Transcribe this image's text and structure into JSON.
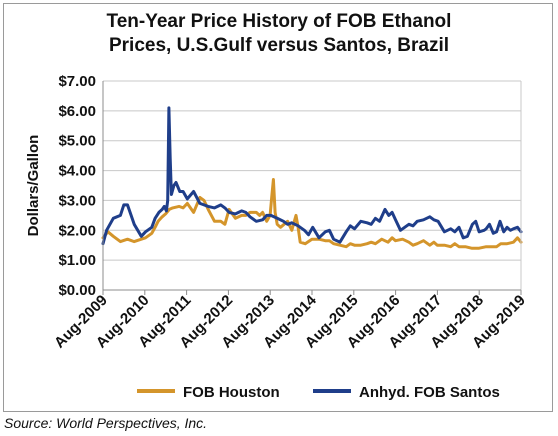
{
  "chart_data": {
    "type": "line",
    "title_line1": "Ten-Year Price History of FOB Ethanol",
    "title_line2": "Prices, U.S.Gulf versus Santos, Brazil",
    "ylabel": "Dollars/Gallon",
    "xlabel": "",
    "ylim": [
      0,
      7
    ],
    "yticks": [
      "$0.00",
      "$1.00",
      "$2.00",
      "$3.00",
      "$4.00",
      "$5.00",
      "$6.00",
      "$7.00"
    ],
    "xlim": [
      2009.583,
      2019.583
    ],
    "xticks": [
      "Aug-2009",
      "Aug-2010",
      "Aug-2011",
      "Aug-2012",
      "Aug-2013",
      "Aug-2014",
      "Aug-2015",
      "Aug-2016",
      "Aug-2017",
      "Aug-2018",
      "Aug-2019"
    ],
    "grid": "horizontal",
    "legend_position": "bottom",
    "series": [
      {
        "name": "FOB Houston",
        "color": "#D4952B",
        "x": [
          2009.583,
          2009.7,
          2009.83,
          2010.0,
          2010.17,
          2010.33,
          2010.5,
          2010.6,
          2010.75,
          2010.83,
          2010.9,
          2011.0,
          2011.08,
          2011.17,
          2011.25,
          2011.4,
          2011.5,
          2011.6,
          2011.75,
          2011.9,
          2012.0,
          2012.1,
          2012.25,
          2012.4,
          2012.5,
          2012.6,
          2012.75,
          2012.9,
          2013.0,
          2013.1,
          2013.25,
          2013.33,
          2013.4,
          2013.5,
          2013.58,
          2013.62,
          2013.66,
          2013.7,
          2013.75,
          2013.83,
          2014.0,
          2014.1,
          2014.2,
          2014.25,
          2014.3,
          2014.42,
          2014.58,
          2014.75,
          2014.9,
          2015.0,
          2015.1,
          2015.25,
          2015.4,
          2015.5,
          2015.6,
          2015.75,
          2015.9,
          2016.0,
          2016.1,
          2016.25,
          2016.4,
          2016.5,
          2016.58,
          2016.75,
          2016.9,
          2017.0,
          2017.1,
          2017.25,
          2017.4,
          2017.5,
          2017.58,
          2017.75,
          2017.9,
          2018.0,
          2018.1,
          2018.25,
          2018.4,
          2018.58,
          2018.75,
          2018.9,
          2019.0,
          2019.1,
          2019.25,
          2019.4,
          2019.5,
          2019.583
        ],
        "values": [
          1.75,
          1.95,
          1.8,
          1.62,
          1.7,
          1.62,
          1.7,
          1.75,
          1.9,
          2.1,
          2.3,
          2.45,
          2.55,
          2.7,
          2.75,
          2.8,
          2.75,
          2.9,
          2.6,
          3.1,
          3.0,
          2.7,
          2.3,
          2.3,
          2.2,
          2.7,
          2.4,
          2.5,
          2.5,
          2.6,
          2.6,
          2.5,
          2.6,
          2.3,
          2.5,
          3.1,
          3.7,
          2.6,
          2.2,
          2.1,
          2.3,
          2.0,
          2.5,
          2.1,
          1.6,
          1.55,
          1.7,
          1.7,
          1.65,
          1.65,
          1.55,
          1.5,
          1.45,
          1.55,
          1.5,
          1.5,
          1.55,
          1.6,
          1.55,
          1.7,
          1.6,
          1.75,
          1.65,
          1.7,
          1.6,
          1.5,
          1.55,
          1.65,
          1.5,
          1.6,
          1.5,
          1.5,
          1.45,
          1.55,
          1.45,
          1.45,
          1.4,
          1.4,
          1.45,
          1.45,
          1.45,
          1.55,
          1.55,
          1.6,
          1.75,
          1.6
        ]
      },
      {
        "name": "Anhyd. FOB Santos",
        "color": "#1F3E8A",
        "x": [
          2009.583,
          2009.67,
          2009.83,
          2010.0,
          2010.08,
          2010.17,
          2010.33,
          2010.5,
          2010.6,
          2010.75,
          2010.83,
          2010.92,
          2011.0,
          2011.05,
          2011.1,
          2011.13,
          2011.16,
          2011.19,
          2011.22,
          2011.28,
          2011.33,
          2011.42,
          2011.5,
          2011.6,
          2011.75,
          2011.9,
          2012.0,
          2012.1,
          2012.25,
          2012.4,
          2012.5,
          2012.6,
          2012.75,
          2012.9,
          2013.0,
          2013.1,
          2013.25,
          2013.4,
          2013.5,
          2013.6,
          2013.75,
          2013.9,
          2014.0,
          2014.1,
          2014.25,
          2014.4,
          2014.5,
          2014.6,
          2014.75,
          2014.9,
          2015.0,
          2015.1,
          2015.25,
          2015.4,
          2015.5,
          2015.6,
          2015.75,
          2015.9,
          2016.0,
          2016.1,
          2016.2,
          2016.33,
          2016.42,
          2016.5,
          2016.58,
          2016.7,
          2016.8,
          2016.9,
          2017.0,
          2017.1,
          2017.25,
          2017.4,
          2017.5,
          2017.6,
          2017.75,
          2017.9,
          2018.0,
          2018.1,
          2018.2,
          2018.3,
          2018.42,
          2018.5,
          2018.58,
          2018.7,
          2018.75,
          2018.83,
          2018.92,
          2019.0,
          2019.08,
          2019.17,
          2019.25,
          2019.33,
          2019.4,
          2019.5,
          2019.583
        ],
        "values": [
          1.55,
          2.0,
          2.4,
          2.5,
          2.85,
          2.85,
          2.2,
          1.8,
          1.95,
          2.1,
          2.4,
          2.6,
          2.7,
          2.8,
          2.65,
          3.0,
          6.1,
          4.4,
          3.2,
          3.5,
          3.6,
          3.3,
          3.3,
          3.05,
          3.3,
          2.9,
          2.85,
          2.8,
          2.75,
          2.85,
          2.75,
          2.6,
          2.55,
          2.65,
          2.6,
          2.45,
          2.3,
          2.35,
          2.5,
          2.5,
          2.4,
          2.3,
          2.2,
          2.25,
          2.15,
          2.0,
          1.85,
          2.1,
          1.75,
          1.95,
          2.0,
          1.7,
          1.6,
          1.95,
          2.15,
          2.05,
          2.3,
          2.25,
          2.2,
          2.4,
          2.3,
          2.7,
          2.5,
          2.6,
          2.35,
          2.0,
          2.1,
          2.2,
          2.15,
          2.3,
          2.35,
          2.45,
          2.35,
          2.3,
          1.95,
          2.05,
          1.95,
          2.1,
          1.75,
          1.8,
          2.2,
          2.3,
          1.95,
          2.0,
          2.05,
          2.2,
          1.9,
          1.95,
          2.3,
          1.95,
          2.1,
          2.0,
          2.05,
          2.1,
          1.95
        ]
      }
    ]
  },
  "source": "Source: World Perspectives, Inc."
}
